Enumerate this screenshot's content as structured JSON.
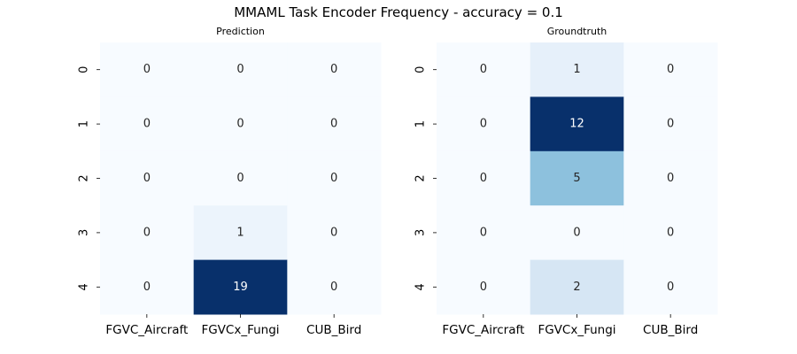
{
  "title": "MMAML Task Encoder Frequency - accuracy = 0.1",
  "chart_data": [
    {
      "type": "heatmap",
      "title": "Prediction",
      "x_categories": [
        "FGVC_Aircraft",
        "FGVCx_Fungi",
        "CUB_Bird"
      ],
      "y_categories": [
        "0",
        "1",
        "2",
        "3",
        "4"
      ],
      "values": [
        [
          0,
          0,
          0
        ],
        [
          0,
          0,
          0
        ],
        [
          0,
          0,
          0
        ],
        [
          0,
          1,
          0
        ],
        [
          0,
          19,
          0
        ]
      ],
      "colormap": "Blues",
      "colorbar": false
    },
    {
      "type": "heatmap",
      "title": "Groundtruth",
      "x_categories": [
        "FGVC_Aircraft",
        "FGVCx_Fungi",
        "CUB_Bird"
      ],
      "y_categories": [
        "0",
        "1",
        "2",
        "3",
        "4"
      ],
      "values": [
        [
          0,
          1,
          0
        ],
        [
          0,
          12,
          0
        ],
        [
          0,
          5,
          0
        ],
        [
          0,
          0,
          0
        ],
        [
          0,
          2,
          0
        ]
      ],
      "colormap": "Blues",
      "colorbar": false
    }
  ]
}
